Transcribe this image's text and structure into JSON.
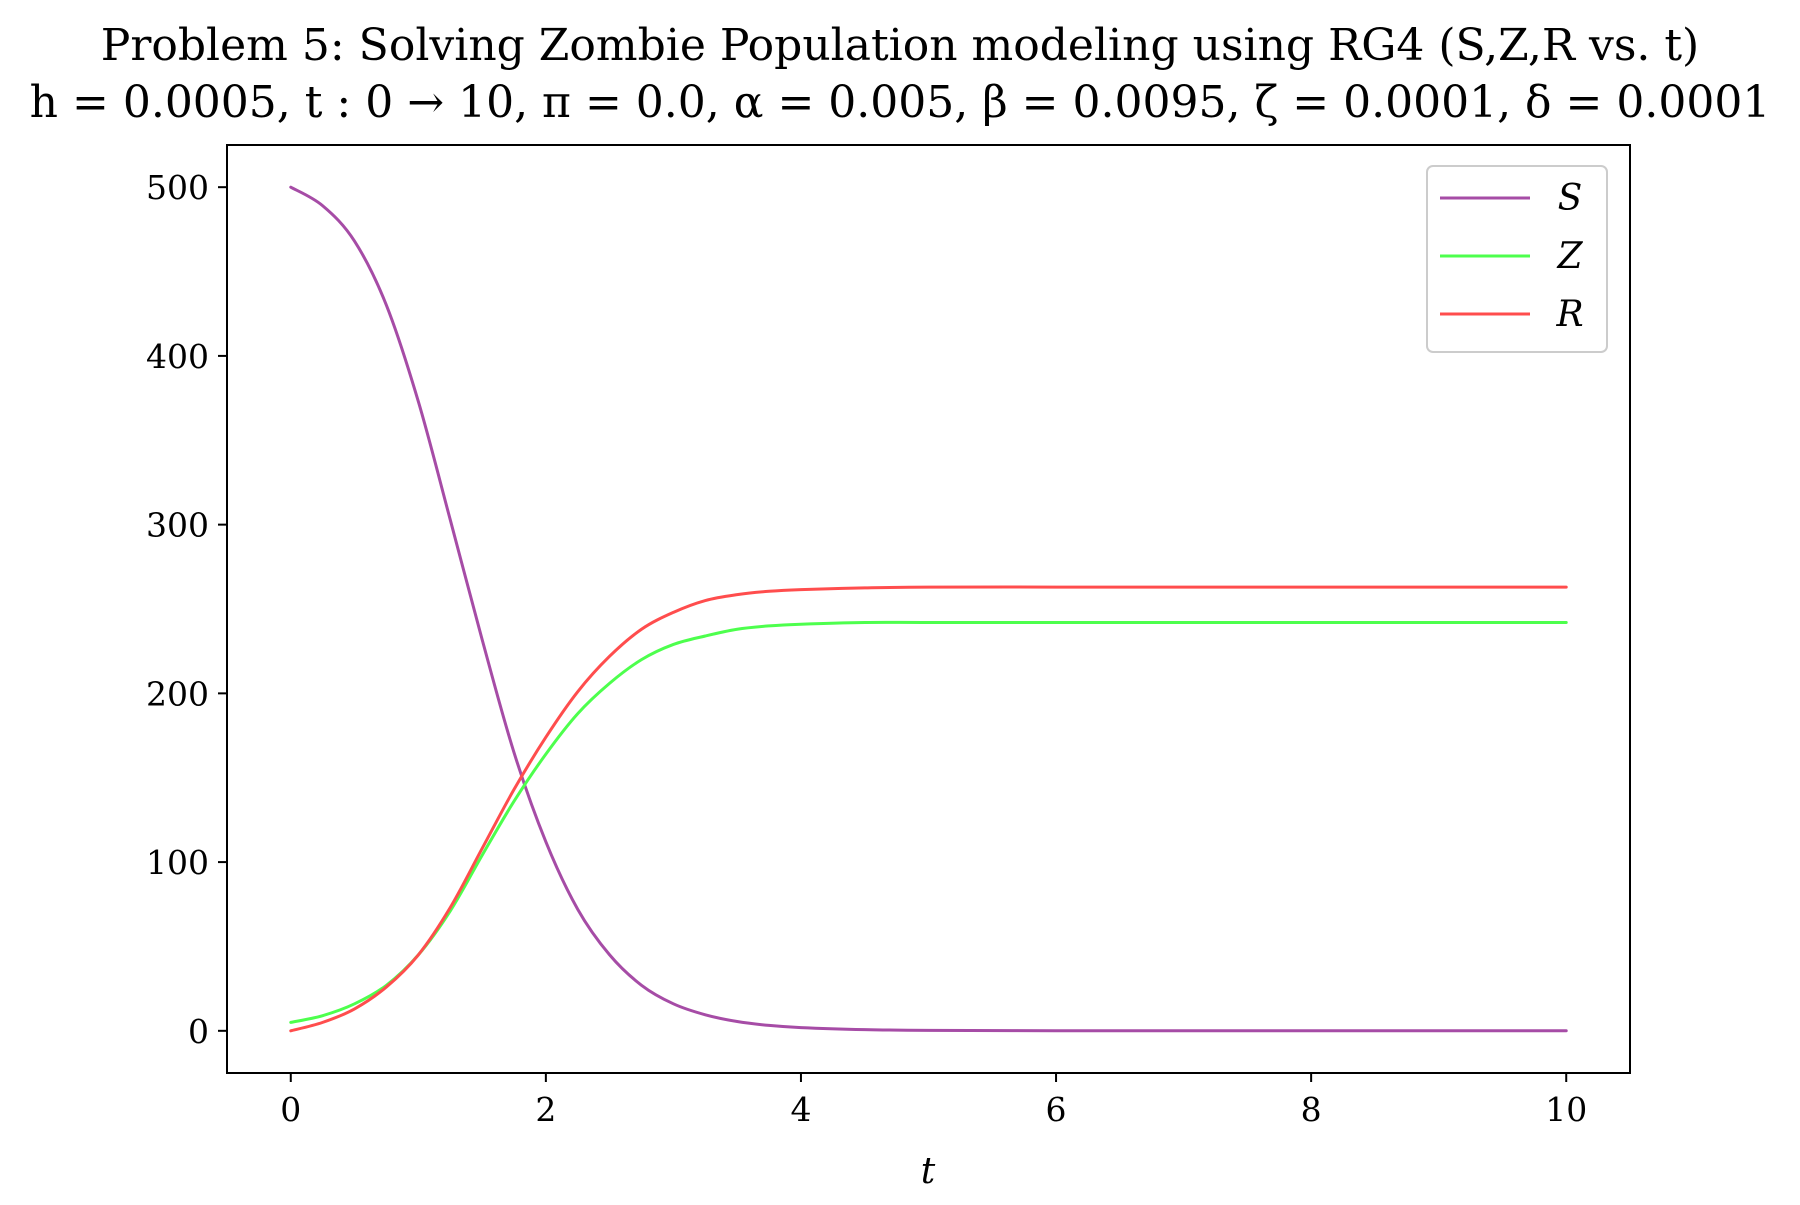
{
  "chart_data": {
    "type": "line",
    "title_lines": [
      "Problem 5: Solving Zombie Population modeling using RG4 (S,Z,R vs. t)",
      "h = 0.0005, t : 0 → 10, π = 0.0, α = 0.005, β = 0.0095, ζ = 0.0001, δ = 0.0001"
    ],
    "xlabel": "t",
    "ylabel": "",
    "xlim": [
      -0.5,
      10.5
    ],
    "ylim": [
      -25,
      525
    ],
    "xticks": [
      0,
      2,
      4,
      6,
      8,
      10
    ],
    "yticks": [
      0,
      100,
      200,
      300,
      400,
      500
    ],
    "grid": false,
    "legend_position": "top-right",
    "x": [
      0,
      0.25,
      0.5,
      0.75,
      1.0,
      1.25,
      1.5,
      1.75,
      2.0,
      2.25,
      2.5,
      2.75,
      3.0,
      3.25,
      3.5,
      3.75,
      4.0,
      4.5,
      5.0,
      6.0,
      7.0,
      8.0,
      9.0,
      10.0
    ],
    "series": [
      {
        "name": "S",
        "color": "#a64ca6",
        "values": [
          500,
          489,
          468,
          430,
          373,
          303,
          232,
          165,
          112,
          72,
          45,
          27,
          16,
          9.5,
          5.5,
          3.2,
          1.9,
          0.7,
          0.25,
          0.05,
          0.02,
          0.01,
          0.01,
          0.01
        ]
      },
      {
        "name": "Z",
        "color": "#4dff4d",
        "values": [
          5,
          9,
          16,
          27,
          45,
          71,
          104,
          136,
          164,
          188,
          206,
          220,
          229,
          234,
          238,
          240,
          241,
          242,
          242,
          242,
          242,
          242,
          242,
          242
        ]
      },
      {
        "name": "R",
        "color": "#ff4d4d",
        "values": [
          0,
          5,
          13,
          26,
          45,
          73,
          108,
          143,
          174,
          201,
          222,
          238,
          248,
          255,
          258.5,
          260.5,
          261.5,
          262.5,
          263,
          263,
          263,
          263,
          263,
          263
        ]
      }
    ]
  }
}
